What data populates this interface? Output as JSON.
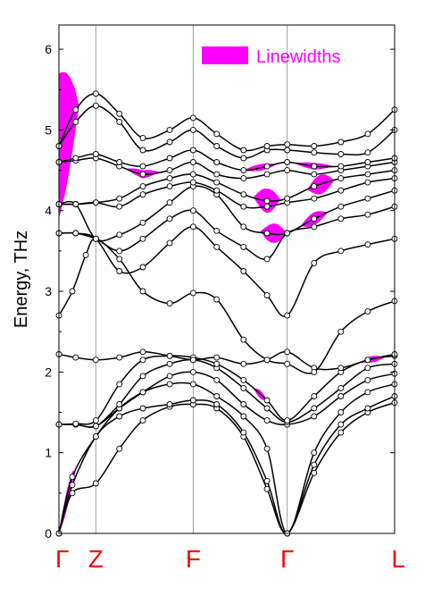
{
  "chart_data": {
    "type": "line",
    "title": "",
    "ylabel": "Energy, THz",
    "xlabel": "",
    "ylim": [
      0,
      6.3
    ],
    "yticks": [
      0,
      1,
      2,
      3,
      4,
      5,
      6
    ],
    "grid": "vertical lines at high-symmetry points",
    "legend": {
      "label": "Linewidths",
      "placement": "top-right"
    },
    "colors": {
      "line": "#000000",
      "linewidth_fill": "#ff00ff",
      "kpoint_label": "#ff0000",
      "legend_text": "#ff00ff",
      "grid": "#a0a0a0"
    },
    "kpoints": [
      {
        "label": "Γ",
        "x": 0
      },
      {
        "label": "Z",
        "x": 0.11
      },
      {
        "label": "F",
        "x": 0.4
      },
      {
        "label": "Γ",
        "x": 0.68
      },
      {
        "label": "L",
        "x": 1
      }
    ],
    "series": [
      {
        "values": [
          [
            0,
            0
          ],
          [
            0.04,
            0.5
          ],
          [
            0.11,
            0.62
          ],
          [
            0.18,
            1.05
          ],
          [
            0.25,
            1.4
          ],
          [
            0.33,
            1.57
          ],
          [
            0.4,
            1.6
          ],
          [
            0.47,
            1.55
          ],
          [
            0.55,
            1.2
          ],
          [
            0.62,
            0.55
          ],
          [
            0.68,
            0
          ],
          [
            0.76,
            0.75
          ],
          [
            0.84,
            1.25
          ],
          [
            0.92,
            1.5
          ],
          [
            1,
            1.62
          ]
        ]
      },
      {
        "values": [
          [
            0,
            0
          ],
          [
            0.04,
            0.6
          ],
          [
            0.11,
            1.2
          ],
          [
            0.18,
            1.45
          ],
          [
            0.25,
            1.55
          ],
          [
            0.33,
            1.6
          ],
          [
            0.4,
            1.65
          ],
          [
            0.47,
            1.6
          ],
          [
            0.55,
            1.25
          ],
          [
            0.62,
            0.65
          ],
          [
            0.68,
            0
          ],
          [
            0.76,
            0.85
          ],
          [
            0.84,
            1.35
          ],
          [
            0.92,
            1.55
          ],
          [
            1,
            1.7
          ]
        ]
      },
      {
        "values": [
          [
            0,
            0
          ],
          [
            0.04,
            0.7
          ],
          [
            0.11,
            1.2
          ],
          [
            0.18,
            1.55
          ],
          [
            0.25,
            1.75
          ],
          [
            0.33,
            1.85
          ],
          [
            0.4,
            1.85
          ],
          [
            0.47,
            1.7
          ],
          [
            0.55,
            1.45
          ],
          [
            0.62,
            1.05
          ],
          [
            0.68,
            0
          ],
          [
            0.76,
            1.0
          ],
          [
            0.84,
            1.5
          ],
          [
            0.92,
            1.75
          ],
          [
            1,
            1.85
          ]
        ]
      },
      {
        "values": [
          [
            0,
            1.35
          ],
          [
            0.05,
            1.35
          ],
          [
            0.11,
            1.33
          ],
          [
            0.18,
            1.55
          ],
          [
            0.25,
            1.75
          ],
          [
            0.33,
            1.95
          ],
          [
            0.4,
            2.0
          ],
          [
            0.47,
            1.9
          ],
          [
            0.55,
            1.6
          ],
          [
            0.62,
            1.4
          ],
          [
            0.68,
            1.35
          ],
          [
            0.76,
            1.45
          ],
          [
            0.84,
            1.7
          ],
          [
            0.92,
            1.9
          ],
          [
            1,
            1.98
          ]
        ]
      },
      {
        "values": [
          [
            0,
            1.35
          ],
          [
            0.05,
            1.35
          ],
          [
            0.11,
            1.33
          ],
          [
            0.18,
            1.6
          ],
          [
            0.25,
            1.95
          ],
          [
            0.33,
            2.1
          ],
          [
            0.4,
            2.15
          ],
          [
            0.47,
            2.05
          ],
          [
            0.55,
            1.8
          ],
          [
            0.62,
            1.55
          ],
          [
            0.68,
            1.38
          ],
          [
            0.76,
            1.55
          ],
          [
            0.84,
            1.8
          ],
          [
            0.92,
            2.05
          ],
          [
            1,
            2.1
          ]
        ]
      },
      {
        "values": [
          [
            0,
            1.35
          ],
          [
            0.05,
            1.36
          ],
          [
            0.11,
            1.4
          ],
          [
            0.18,
            1.85
          ],
          [
            0.25,
            2.15
          ],
          [
            0.33,
            2.2
          ],
          [
            0.4,
            2.18
          ],
          [
            0.47,
            2.1
          ],
          [
            0.55,
            1.9
          ],
          [
            0.62,
            1.65
          ],
          [
            0.68,
            1.4
          ],
          [
            0.76,
            1.7
          ],
          [
            0.84,
            2.0
          ],
          [
            0.92,
            2.15
          ],
          [
            1,
            2.2
          ]
        ]
      },
      {
        "values": [
          [
            0,
            2.22
          ],
          [
            0.05,
            2.18
          ],
          [
            0.11,
            2.15
          ],
          [
            0.18,
            2.18
          ],
          [
            0.25,
            2.25
          ],
          [
            0.33,
            2.2
          ],
          [
            0.4,
            2.15
          ],
          [
            0.47,
            2.18
          ],
          [
            0.55,
            2.1
          ],
          [
            0.62,
            2.15
          ],
          [
            0.68,
            2.25
          ],
          [
            0.76,
            2.05
          ],
          [
            0.84,
            2.05
          ],
          [
            0.92,
            2.15
          ],
          [
            1,
            2.22
          ]
        ]
      },
      {
        "values": [
          [
            0,
            2.7
          ],
          [
            0.04,
            3.0
          ],
          [
            0.08,
            3.45
          ],
          [
            0.11,
            3.65
          ],
          [
            0.18,
            3.4
          ],
          [
            0.25,
            3.0
          ],
          [
            0.33,
            2.85
          ],
          [
            0.4,
            2.98
          ],
          [
            0.47,
            2.9
          ],
          [
            0.55,
            2.4
          ],
          [
            0.62,
            2.15
          ],
          [
            0.68,
            2.1
          ],
          [
            0.76,
            2.0
          ],
          [
            0.84,
            2.5
          ],
          [
            0.92,
            2.75
          ],
          [
            1,
            2.88
          ]
        ]
      },
      {
        "values": [
          [
            0,
            3.72
          ],
          [
            0.05,
            3.72
          ],
          [
            0.11,
            3.65
          ],
          [
            0.18,
            3.25
          ],
          [
            0.25,
            3.3
          ],
          [
            0.33,
            3.6
          ],
          [
            0.4,
            3.8
          ],
          [
            0.47,
            3.55
          ],
          [
            0.55,
            3.25
          ],
          [
            0.62,
            2.95
          ],
          [
            0.68,
            2.7
          ],
          [
            0.76,
            3.35
          ],
          [
            0.84,
            3.5
          ],
          [
            0.92,
            3.58
          ],
          [
            1,
            3.65
          ]
        ]
      },
      {
        "values": [
          [
            0,
            3.72
          ],
          [
            0.05,
            3.72
          ],
          [
            0.11,
            3.65
          ],
          [
            0.18,
            3.5
          ],
          [
            0.25,
            3.65
          ],
          [
            0.33,
            3.9
          ],
          [
            0.4,
            4.0
          ],
          [
            0.47,
            3.75
          ],
          [
            0.55,
            3.55
          ],
          [
            0.62,
            3.4
          ],
          [
            0.68,
            3.72
          ],
          [
            0.76,
            3.8
          ],
          [
            0.84,
            3.9
          ],
          [
            0.92,
            3.95
          ],
          [
            1,
            4.05
          ]
        ]
      },
      {
        "values": [
          [
            0,
            4.08
          ],
          [
            0.05,
            4.08
          ],
          [
            0.11,
            3.65
          ],
          [
            0.18,
            3.7
          ],
          [
            0.25,
            3.85
          ],
          [
            0.33,
            4.1
          ],
          [
            0.4,
            4.3
          ],
          [
            0.47,
            4.2
          ],
          [
            0.55,
            3.8
          ],
          [
            0.62,
            3.72
          ],
          [
            0.68,
            3.72
          ],
          [
            0.76,
            3.9
          ],
          [
            0.84,
            4.05
          ],
          [
            0.92,
            4.15
          ],
          [
            1,
            4.25
          ]
        ]
      },
      {
        "values": [
          [
            0,
            4.08
          ],
          [
            0.05,
            4.08
          ],
          [
            0.11,
            4.1
          ],
          [
            0.18,
            4.05
          ],
          [
            0.25,
            4.2
          ],
          [
            0.33,
            4.3
          ],
          [
            0.4,
            4.35
          ],
          [
            0.47,
            4.25
          ],
          [
            0.55,
            4.05
          ],
          [
            0.62,
            4.05
          ],
          [
            0.68,
            4.1
          ],
          [
            0.76,
            4.15
          ],
          [
            0.84,
            4.25
          ],
          [
            0.92,
            4.35
          ],
          [
            1,
            4.4
          ]
        ]
      },
      {
        "values": [
          [
            0,
            4.08
          ],
          [
            0.05,
            4.08
          ],
          [
            0.11,
            4.1
          ],
          [
            0.18,
            4.15
          ],
          [
            0.25,
            4.3
          ],
          [
            0.33,
            4.4
          ],
          [
            0.4,
            4.45
          ],
          [
            0.47,
            4.35
          ],
          [
            0.55,
            4.2
          ],
          [
            0.62,
            4.12
          ],
          [
            0.68,
            4.15
          ],
          [
            0.76,
            4.3
          ],
          [
            0.84,
            4.4
          ],
          [
            0.92,
            4.45
          ],
          [
            1,
            4.5
          ]
        ]
      },
      {
        "values": [
          [
            0,
            4.6
          ],
          [
            0.05,
            4.62
          ],
          [
            0.11,
            4.65
          ],
          [
            0.18,
            4.55
          ],
          [
            0.25,
            4.45
          ],
          [
            0.33,
            4.5
          ],
          [
            0.4,
            4.6
          ],
          [
            0.47,
            4.45
          ],
          [
            0.55,
            4.4
          ],
          [
            0.62,
            4.45
          ],
          [
            0.68,
            4.5
          ],
          [
            0.76,
            4.45
          ],
          [
            0.84,
            4.5
          ],
          [
            0.92,
            4.55
          ],
          [
            1,
            4.6
          ]
        ]
      },
      {
        "values": [
          [
            0,
            4.6
          ],
          [
            0.05,
            4.65
          ],
          [
            0.11,
            4.7
          ],
          [
            0.18,
            4.6
          ],
          [
            0.25,
            4.55
          ],
          [
            0.33,
            4.65
          ],
          [
            0.4,
            4.75
          ],
          [
            0.47,
            4.6
          ],
          [
            0.55,
            4.5
          ],
          [
            0.62,
            4.55
          ],
          [
            0.68,
            4.6
          ],
          [
            0.76,
            4.55
          ],
          [
            0.84,
            4.55
          ],
          [
            0.92,
            4.6
          ],
          [
            1,
            4.65
          ]
        ]
      },
      {
        "values": [
          [
            0,
            4.8
          ],
          [
            0.05,
            5.1
          ],
          [
            0.11,
            5.3
          ],
          [
            0.18,
            5.1
          ],
          [
            0.25,
            4.75
          ],
          [
            0.33,
            4.85
          ],
          [
            0.4,
            5.0
          ],
          [
            0.47,
            4.8
          ],
          [
            0.55,
            4.65
          ],
          [
            0.62,
            4.75
          ],
          [
            0.68,
            4.75
          ],
          [
            0.76,
            4.72
          ],
          [
            0.84,
            4.7
          ],
          [
            0.92,
            4.72
          ],
          [
            1,
            5.0
          ]
        ]
      },
      {
        "values": [
          [
            0,
            4.8
          ],
          [
            0.05,
            5.25
          ],
          [
            0.11,
            5.45
          ],
          [
            0.18,
            5.2
          ],
          [
            0.25,
            4.9
          ],
          [
            0.33,
            5.0
          ],
          [
            0.4,
            5.15
          ],
          [
            0.47,
            4.95
          ],
          [
            0.55,
            4.75
          ],
          [
            0.62,
            4.8
          ],
          [
            0.68,
            4.82
          ],
          [
            0.76,
            4.8
          ],
          [
            0.84,
            4.85
          ],
          [
            0.92,
            4.95
          ],
          [
            1,
            5.25
          ]
        ]
      }
    ]
  }
}
